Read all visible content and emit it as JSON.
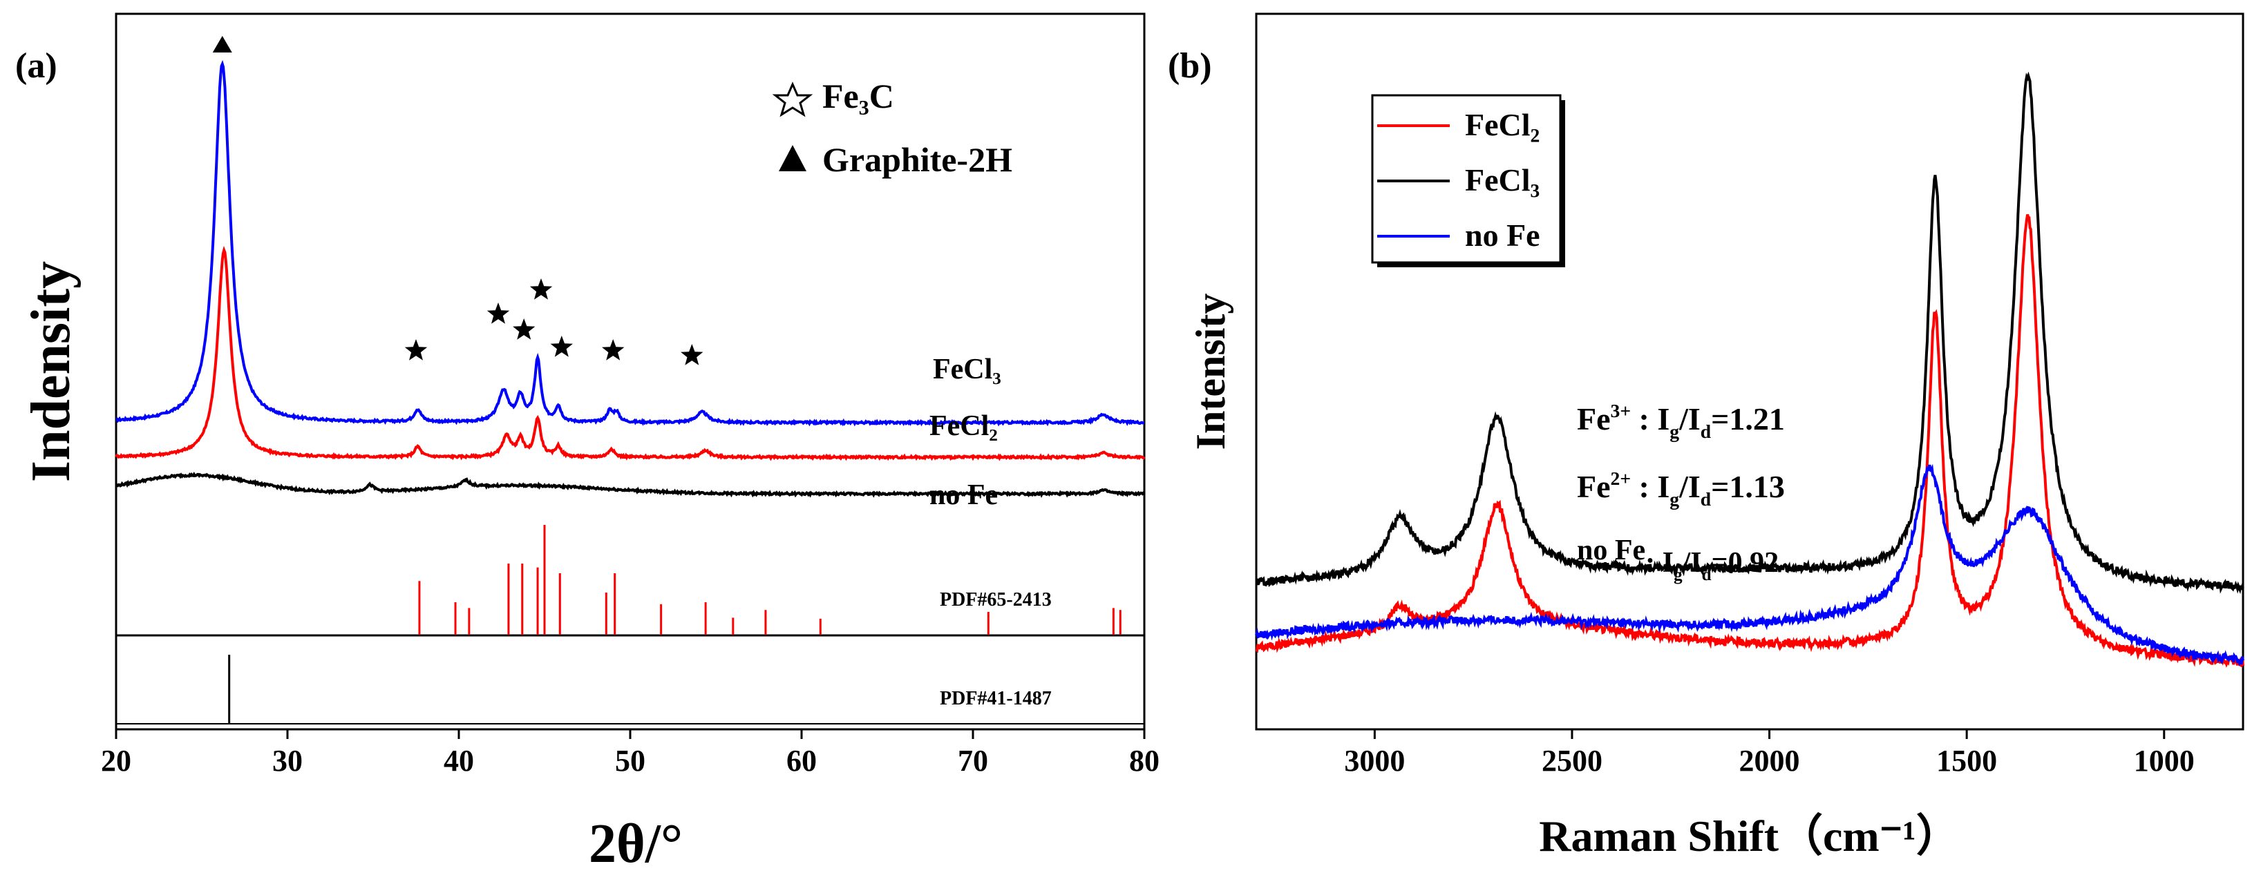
{
  "chart_data": [
    {
      "panel_label": "(a)",
      "type": "line",
      "xlabel": "2θ/°",
      "ylabel": "Indensity",
      "xlim": [
        20,
        80
      ],
      "xticks": [
        "20",
        "30",
        "40",
        "50",
        "60",
        "70",
        "80"
      ],
      "legend": {
        "position": "top-right",
        "items": [
          {
            "marker": "star",
            "label": "Fe₃C"
          },
          {
            "marker": "triangle",
            "label": "Graphite-2H"
          }
        ]
      },
      "series": [
        {
          "name": "FeCl₃",
          "color": "#0000ff",
          "baseline": 0.52,
          "peaks": [
            [
              26.2,
              5.2,
              0.55
            ],
            [
              37.6,
              0.18,
              0.25
            ],
            [
              42.6,
              0.45,
              0.35
            ],
            [
              43.6,
              0.35,
              0.25
            ],
            [
              44.6,
              0.9,
              0.22
            ],
            [
              45.8,
              0.22,
              0.2
            ],
            [
              48.8,
              0.16,
              0.2
            ],
            [
              49.2,
              0.14,
              0.2
            ],
            [
              54.2,
              0.15,
              0.4
            ],
            [
              77.6,
              0.12,
              0.4
            ]
          ]
        },
        {
          "name": "FeCl₂",
          "color": "#ff0000",
          "baseline": 1.02,
          "peaks": [
            [
              26.3,
              3.0,
              0.45
            ],
            [
              37.6,
              0.15,
              0.22
            ],
            [
              42.8,
              0.3,
              0.3
            ],
            [
              43.6,
              0.25,
              0.22
            ],
            [
              44.6,
              0.55,
              0.22
            ],
            [
              45.8,
              0.15,
              0.2
            ],
            [
              48.9,
              0.12,
              0.2
            ],
            [
              54.4,
              0.1,
              0.3
            ],
            [
              77.6,
              0.06,
              0.4
            ]
          ]
        },
        {
          "name": "no Fe",
          "color": "#000000",
          "baseline": 1.55,
          "humps": [
            [
              24.5,
              0.27,
              3.5
            ],
            [
              43.5,
              0.12,
              5.0
            ]
          ],
          "peaks": [
            [
              34.8,
              0.1,
              0.3
            ],
            [
              40.4,
              0.1,
              0.3
            ],
            [
              77.6,
              0.05,
              0.4
            ]
          ]
        }
      ],
      "pdf_references": [
        {
          "label": "PDF#65-2413",
          "color": "#ff0000",
          "lines": [
            [
              37.7,
              0.42
            ],
            [
              39.8,
              0.2
            ],
            [
              40.6,
              0.14
            ],
            [
              42.9,
              0.6
            ],
            [
              43.7,
              0.6
            ],
            [
              44.6,
              0.56
            ],
            [
              45.0,
              1.0
            ],
            [
              45.9,
              0.5
            ],
            [
              48.6,
              0.3
            ],
            [
              49.1,
              0.5
            ],
            [
              51.8,
              0.18
            ],
            [
              54.4,
              0.2
            ],
            [
              56.0,
              0.04
            ],
            [
              57.9,
              0.12
            ],
            [
              61.1,
              0.03
            ],
            [
              70.9,
              0.1
            ],
            [
              78.2,
              0.14
            ],
            [
              78.6,
              0.12
            ]
          ]
        },
        {
          "label": "PDF#41-1487",
          "color": "#000000",
          "lines": [
            [
              26.6,
              1.0
            ]
          ]
        }
      ],
      "annotations": {
        "triangle_at": [
          26.2
        ],
        "star_at": [
          37.5,
          42.3,
          43.8,
          44.8,
          46.0,
          49.0,
          53.6
        ]
      }
    },
    {
      "panel_label": "(b)",
      "type": "line",
      "xlabel": "Raman Shift（cm⁻¹）",
      "ylabel": "Intensity",
      "xlim": [
        3300,
        800
      ],
      "xticks": [
        "3000",
        "2500",
        "2000",
        "1500",
        "1000"
      ],
      "tick_values": [
        3000,
        2500,
        2000,
        1500,
        1000
      ],
      "legend": {
        "position": "top-left"
      },
      "series": [
        {
          "name": "FeCl₂",
          "color": "#ff0000",
          "baseline": 0.06,
          "humps": [
            [
              2700,
              0.1,
              500
            ],
            [
              1500,
              0.04,
              400
            ]
          ],
          "peaks": [
            [
              2935,
              0.06,
              30
            ],
            [
              2690,
              0.32,
              45
            ],
            [
              1580,
              0.85,
              22
            ],
            [
              1345,
              1.12,
              35
            ]
          ]
        },
        {
          "name": "FeCl₃",
          "color": "#000000",
          "baseline": 0.26,
          "humps": [
            [
              2500,
              0.04,
              600
            ],
            [
              1800,
              0.02,
              400
            ]
          ],
          "peaks": [
            [
              2935,
              0.14,
              45
            ],
            [
              2690,
              0.4,
              50
            ],
            [
              1580,
              1.0,
              24
            ],
            [
              1345,
              1.3,
              40
            ]
          ]
        },
        {
          "name": "no Fe",
          "color": "#0000ff",
          "baseline": 0.06,
          "humps": [
            [
              2700,
              0.12,
              700
            ],
            [
              1600,
              0.08,
              300
            ]
          ],
          "peaks": [
            [
              1595,
              0.35,
              45
            ],
            [
              1340,
              0.32,
              110
            ]
          ]
        }
      ],
      "annotation_rows": [
        {
          "ion": "Fe",
          "sup": "3+",
          "sep": " : ",
          "ratio_a": "I",
          "sub_a": "g",
          "slash": "/",
          "ratio_b": "I",
          "sub_b": "d",
          "value": "=1.21"
        },
        {
          "ion": "Fe",
          "sup": "2+",
          "sep": " : ",
          "ratio_a": "I",
          "sub_a": "g",
          "slash": "/",
          "ratio_b": "I",
          "sub_b": "d",
          "value": "=1.13"
        },
        {
          "ion": "no Fe",
          "sup": "",
          "sep": ": ",
          "ratio_a": "I",
          "sub_a": "g",
          "slash": "/",
          "ratio_b": "I",
          "sub_b": "d",
          "value": "=0.92"
        }
      ]
    }
  ]
}
